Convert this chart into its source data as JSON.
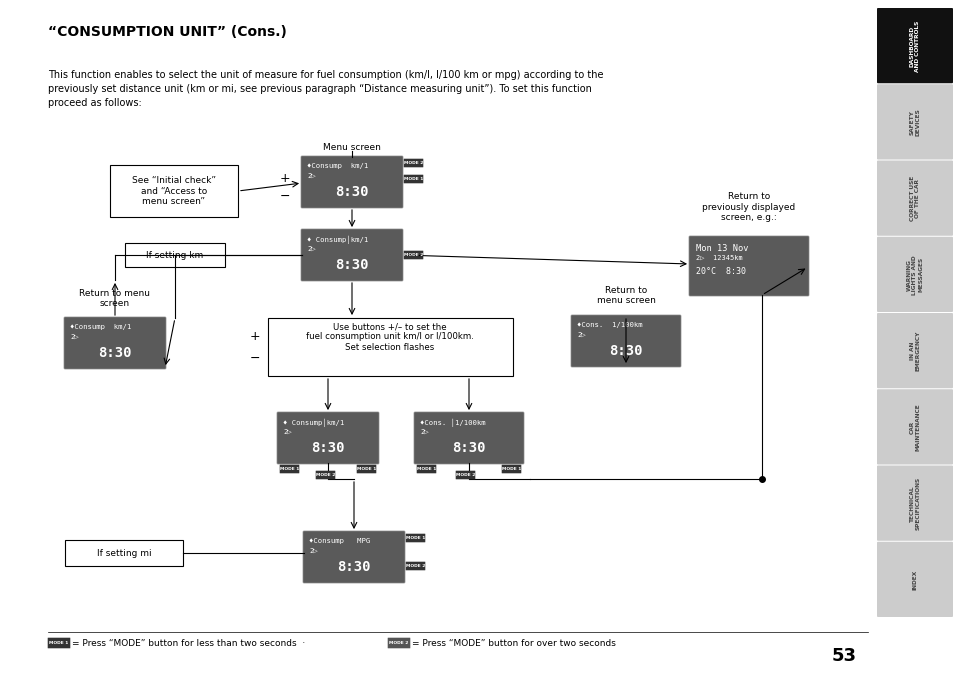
{
  "title": "“CONSUMPTION UNIT” (Cons.)",
  "body_text": "This function enables to select the unit of measure for fuel consumption (km/l, l/100 km or mpg) according to the\npreviously set distance unit (km or mi, see previous paragraph “Distance measuring unit”). To set this function\nproceed as follows:",
  "page_number": "53",
  "sidebar_labels": [
    "DASHBOARD\nAND CONTROLS",
    "SAFETY\nDEVICES",
    "CORRECT USE\nOF THE CAR",
    "WARNING\nLIGHTS AND\nMESSAGES",
    "IN AN\nEMERGENCY",
    "CAR\nMAINTENANCE",
    "TECHNICAL\nSPECIFICATIONS",
    "INDEX"
  ],
  "bg_color": "#ffffff",
  "sidebar_active_color": "#111111",
  "sidebar_inactive_color": "#cccccc",
  "sidebar_text_color_active": "#ffffff",
  "sidebar_text_color_inactive": "#444444",
  "display_bg": "#5a5a5a",
  "display_text_color": "#ffffff"
}
